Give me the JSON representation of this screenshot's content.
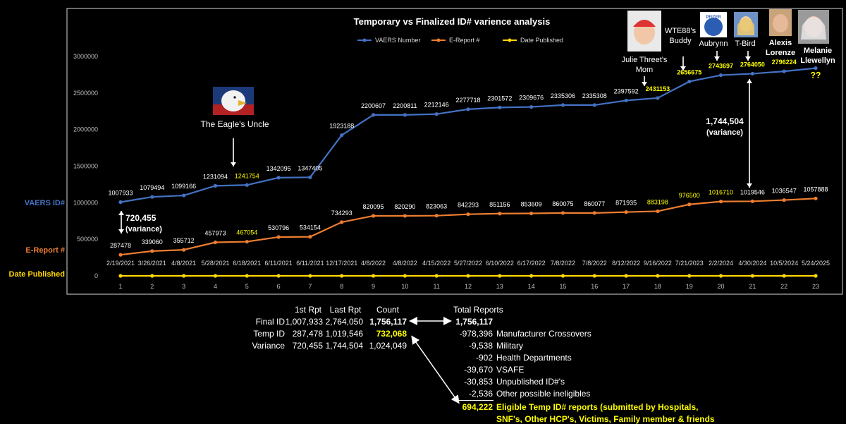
{
  "chart_data": {
    "type": "line",
    "title": "Temporary vs Finalized ID# varience analysis",
    "x": [
      1,
      2,
      3,
      4,
      5,
      6,
      7,
      8,
      9,
      10,
      11,
      12,
      13,
      14,
      15,
      16,
      17,
      18,
      19,
      20,
      21,
      22,
      23
    ],
    "dates": [
      "2/19/2021",
      "3/26/2021",
      "4/8/2021",
      "5/28/2021",
      "6/18/2021",
      "6/11/2021",
      "6/11/2021",
      "12/17/2021",
      "4/8/2022",
      "4/8/2022",
      "4/15/2022",
      "5/27/2022",
      "6/10/2022",
      "6/17/2022",
      "7/8/2022",
      "7/8/2022",
      "8/12/2022",
      "9/16/2022",
      "7/21/2023",
      "2/2/2024",
      "4/30/2024",
      "10/5/2024",
      "5/24/2025"
    ],
    "ylim": [
      0,
      3000000
    ],
    "yticks": [
      "0",
      "500000",
      "1000000",
      "1500000",
      "2000000",
      "2500000",
      "3000000"
    ],
    "series": [
      {
        "name": "VAERS Number",
        "color": "#4472c4",
        "values": [
          1007933,
          1079494,
          1099166,
          1231094,
          1241754,
          1342095,
          1347405,
          1923188,
          2200607,
          2200811,
          2212146,
          2277718,
          2301572,
          2309676,
          2335306,
          2335308,
          2397592,
          2431153,
          2656675,
          2743697,
          2764050,
          2796224,
          2840000
        ],
        "labels": [
          "1007933",
          "1079494",
          "1099166",
          "1231094",
          "1241754",
          "1342095",
          "1347405",
          "1923188",
          "2200607",
          "2200811",
          "2212146",
          "2277718",
          "2301572",
          "2309676",
          "2335306",
          "2335308",
          "2397592",
          "2431153",
          "2656675",
          "2743697",
          "2764050",
          "2796224",
          "??"
        ],
        "highlight": [
          5,
          18,
          19,
          20,
          21,
          22,
          23
        ]
      },
      {
        "name": "E-Report #",
        "color": "#ed7d31",
        "values": [
          287478,
          339060,
          355712,
          457973,
          467054,
          530796,
          534154,
          734293,
          820095,
          820290,
          823063,
          842293,
          851156,
          853609,
          860075,
          860077,
          871935,
          883198,
          976500,
          1016710,
          1019546,
          1036547,
          1057888
        ],
        "labels": [
          "287478",
          "339060",
          "355712",
          "457973",
          "467054",
          "530796",
          "534154",
          "734293",
          "820095",
          "820290",
          "823063",
          "842293",
          "851156",
          "853609",
          "860075",
          "860077",
          "871935",
          "883198",
          "976500",
          "1016710",
          "1019546",
          "1036547",
          "1057888"
        ],
        "highlight": [
          5,
          18,
          19,
          20
        ]
      },
      {
        "name": "Date Published",
        "color": "#ffd700",
        "values": [
          0,
          0,
          0,
          0,
          0,
          0,
          0,
          0,
          0,
          0,
          0,
          0,
          0,
          0,
          0,
          0,
          0,
          0,
          0,
          0,
          0,
          0,
          0
        ]
      }
    ],
    "series_axis_labels": [
      "VAERS ID#",
      "E-Report #",
      "Date Published"
    ],
    "annotations": {
      "eagle": "The Eagle's Uncle",
      "julie": [
        "Julie Threet's",
        "Mom"
      ],
      "wte": [
        "WTE88's",
        "Buddy"
      ],
      "aubrynn": "Aubrynn",
      "tbird": "T-Bird",
      "alexis": [
        "Alexis",
        "Lorenze"
      ],
      "melanie": [
        "Melanie",
        "Llewellyn"
      ],
      "variance_left": [
        "720,455",
        "(variance)"
      ],
      "variance_right": [
        "1,744,504",
        "(variance)"
      ],
      "pfizer_badge": "PFIZER"
    },
    "legend_position": "top-center",
    "grid": false
  },
  "summary_table": {
    "headers": [
      "1st Rpt",
      "Last Rpt",
      "Count"
    ],
    "rows": [
      {
        "label": "Final ID",
        "first": "1,007,933",
        "last": "2,764,050",
        "count": "1,756,117"
      },
      {
        "label": "Temp ID",
        "first": "287,478",
        "last": "1,019,546",
        "count": "732,068"
      },
      {
        "label": "Variance",
        "first": "720,455",
        "last": "1,744,504",
        "count": "1,024,049"
      }
    ]
  },
  "reports_table": {
    "header": "Total Reports",
    "total": "1,756,117",
    "rows": [
      {
        "value": "-978,396",
        "label": "Manufacturer Crossovers"
      },
      {
        "value": "-9,538",
        "label": "Military"
      },
      {
        "value": "-902",
        "label": "Health Departments"
      },
      {
        "value": "-39,670",
        "label": "VSAFE"
      },
      {
        "value": "-30,853",
        "label": "Unpublished ID#'s"
      },
      {
        "value": "-2,536",
        "label": "Other possible ineligibles"
      }
    ],
    "result_value": "694,222",
    "result_label_1": "Eligible Temp ID# reports (submitted by Hospitals,",
    "result_label_2": "SNF's, Other HCP's, Victims, Family member & friends"
  }
}
